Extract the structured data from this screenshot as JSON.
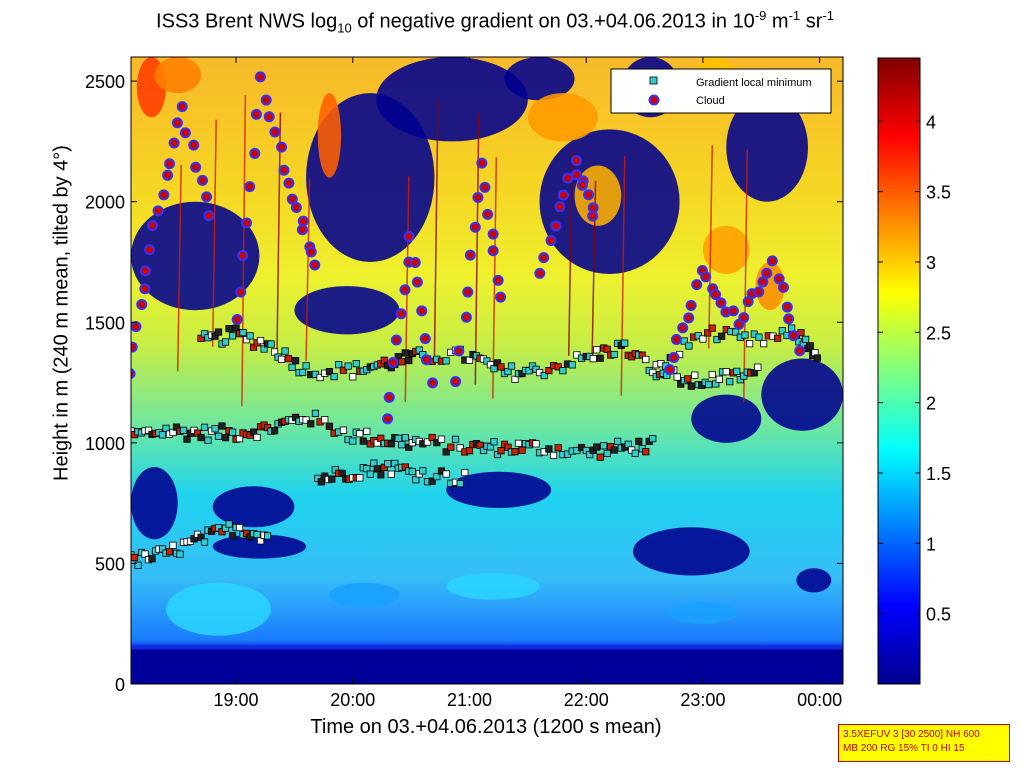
{
  "chart_data": {
    "type": "heatmap",
    "title_parts": {
      "prefix": "ISS3 Brent NWS log",
      "sub": "10",
      "middle": " of negative gradient on 03.+04.06.2013 in 10",
      "sup1": "-9",
      "mid2": " m",
      "sup2": "-1",
      "mid3": " sr",
      "sup3": "-1"
    },
    "xlabel": "Time on 03.+04.06.2013 (1200 s mean)",
    "ylabel": "Height in m (240 m mean, tilted by 4°)",
    "xlim_hours": [
      18.1,
      24.2
    ],
    "ylim": [
      0,
      2600
    ],
    "x_ticks": [
      {
        "value": 19,
        "label": "19:00"
      },
      {
        "value": 20,
        "label": "20:00"
      },
      {
        "value": 21,
        "label": "21:00"
      },
      {
        "value": 22,
        "label": "22:00"
      },
      {
        "value": 23,
        "label": "23:00"
      },
      {
        "value": 24,
        "label": "00:00"
      }
    ],
    "y_ticks": [
      0,
      500,
      1000,
      1500,
      2000,
      2500
    ],
    "colorbar": {
      "range": [
        0,
        4.45
      ],
      "ticks": [
        0.5,
        1,
        1.5,
        2,
        2.5,
        3,
        3.5,
        4
      ],
      "colormap": "jet"
    },
    "legend": {
      "position": "top-right",
      "entries": [
        {
          "label": "Gradient local minimum",
          "marker": "square",
          "color": "#33cccc"
        },
        {
          "label": "Cloud",
          "marker": "circle",
          "color": "#cc0000",
          "edge": "#3333ff"
        }
      ]
    },
    "gradient_minimum_tracks": [
      {
        "x": [
          18.1,
          18.4,
          18.7,
          19.0,
          19.3,
          19.6,
          20.0,
          20.3,
          20.6,
          21.0,
          21.3,
          21.6,
          22.0,
          22.3,
          22.6
        ],
        "y": [
          1030,
          1050,
          1040,
          1040,
          1060,
          1110,
          1030,
          1010,
          1000,
          980,
          980,
          980,
          960,
          980,
          990
        ]
      },
      {
        "x": [
          18.7,
          19.0,
          19.3,
          19.6,
          20.0,
          20.3,
          20.6,
          21.0,
          21.3,
          21.6,
          22.0,
          22.3,
          22.6,
          23.0,
          23.4,
          23.8,
          24.0
        ],
        "y": [
          1420,
          1450,
          1400,
          1300,
          1300,
          1330,
          1360,
          1360,
          1290,
          1300,
          1350,
          1400,
          1300,
          1460,
          1420,
          1450,
          1360
        ]
      },
      {
        "x": [
          18.1,
          18.4,
          18.7,
          19.0,
          19.3
        ],
        "y": [
          510,
          540,
          600,
          650,
          610
        ]
      },
      {
        "x": [
          19.7,
          20.0,
          20.3,
          20.6,
          21.0
        ],
        "y": [
          850,
          880,
          900,
          870,
          850
        ]
      },
      {
        "x": [
          22.6,
          22.9,
          23.2,
          23.5
        ],
        "y": [
          1300,
          1250,
          1270,
          1290
        ]
      }
    ],
    "cloud_tracks": [
      {
        "x": [
          18.1,
          18.3,
          18.55,
          18.8
        ],
        "y": [
          1300,
          1900,
          2380,
          1850
        ]
      },
      {
        "x": [
          19.0,
          19.2,
          19.5,
          19.7
        ],
        "y": [
          1500,
          2500,
          2000,
          1700
        ]
      },
      {
        "x": [
          20.3,
          20.5,
          20.7
        ],
        "y": [
          1100,
          1850,
          1150
        ]
      },
      {
        "x": [
          20.9,
          21.1,
          21.3
        ],
        "y": [
          1250,
          2150,
          1500
        ]
      },
      {
        "x": [
          21.6,
          21.9,
          22.1
        ],
        "y": [
          1700,
          2170,
          1900
        ]
      },
      {
        "x": [
          22.7,
          23.0,
          23.3,
          23.6,
          23.85
        ],
        "y": [
          1300,
          1700,
          1500,
          1750,
          1320
        ]
      }
    ]
  },
  "infobox": {
    "line1": "3.5XEFUV 3 [30 2500] NH 600",
    "line2": "MB 200 RG 15% TI 0 HI 15"
  }
}
